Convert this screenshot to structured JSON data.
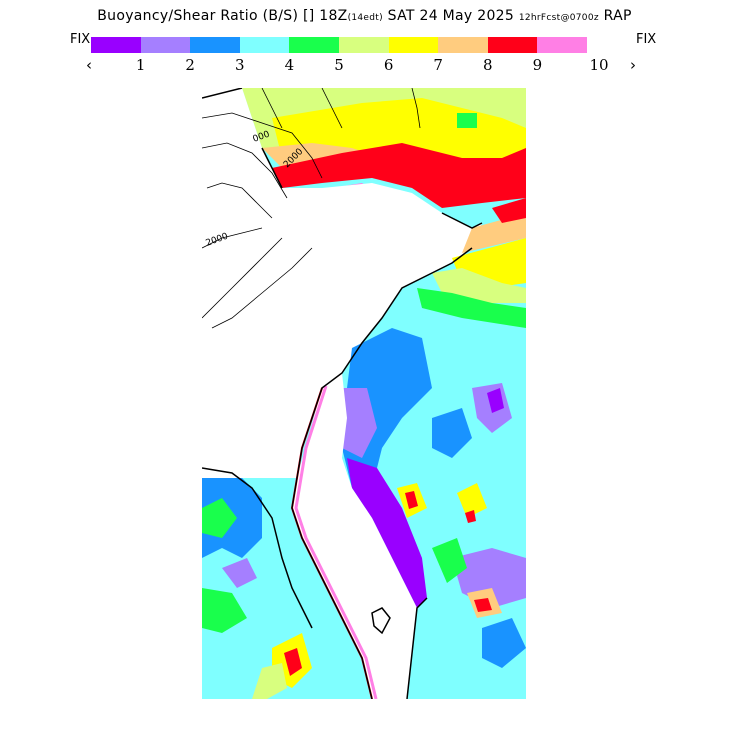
{
  "header": {
    "title_main": "Buoyancy/Shear Ratio (B/S) [] 18Z",
    "title_small_1": "(14edt)",
    "title_mid": " SAT 24 May 2025 ",
    "title_small_2": "12hrFcst@0700z",
    "title_end": " RAP"
  },
  "legend": {
    "fix_left": "FIX",
    "fix_right": "FIX",
    "colors": [
      "#9900ff",
      "#a57fff",
      "#1993ff",
      "#7fffff",
      "#19ff4c",
      "#d8ff7f",
      "#ffff00",
      "#ffcc7f",
      "#ff0019",
      "#ff7fe5"
    ],
    "tick_labels": [
      "1",
      "2",
      "3",
      "4",
      "5",
      "6",
      "7",
      "8",
      "9",
      "10"
    ],
    "prev_label": "‹",
    "next_label": "›"
  },
  "map": {
    "contour_labels": [
      "000",
      "2000",
      "2000"
    ],
    "colors": {
      "water": "#ffffff",
      "fix": "#9900ff",
      "level1": "#a57fff",
      "level2": "#1993ff",
      "level3": "#7fffff",
      "level4": "#19ff4c",
      "level5": "#d8ff7f",
      "level6": "#ffff00",
      "level7": "#ffcc7f",
      "level8": "#ff0019",
      "level9": "#ff7fe5"
    }
  }
}
